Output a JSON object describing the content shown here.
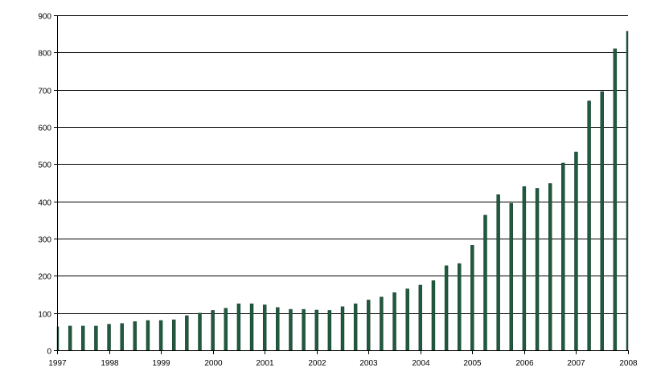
{
  "chart_data": {
    "type": "bar",
    "title": "",
    "xlabel": "",
    "ylabel": "",
    "ylim": [
      0,
      900
    ],
    "yticks": [
      0,
      100,
      200,
      300,
      400,
      500,
      600,
      700,
      800,
      900
    ],
    "grid": true,
    "bar_color": "#1f5a3f",
    "x_tick_labels": [
      "1997",
      "1998",
      "1999",
      "2000",
      "2001",
      "2002",
      "2003",
      "2004",
      "2005",
      "2006",
      "2007",
      "2008"
    ],
    "values": [
      63,
      65,
      65,
      65,
      70,
      72,
      77,
      80,
      80,
      82,
      93,
      100,
      107,
      113,
      125,
      125,
      122,
      115,
      110,
      110,
      108,
      107,
      117,
      125,
      135,
      143,
      155,
      165,
      175,
      187,
      227,
      233,
      282,
      363,
      418,
      395,
      440,
      435,
      448,
      503,
      533,
      670,
      695,
      810,
      857
    ]
  }
}
